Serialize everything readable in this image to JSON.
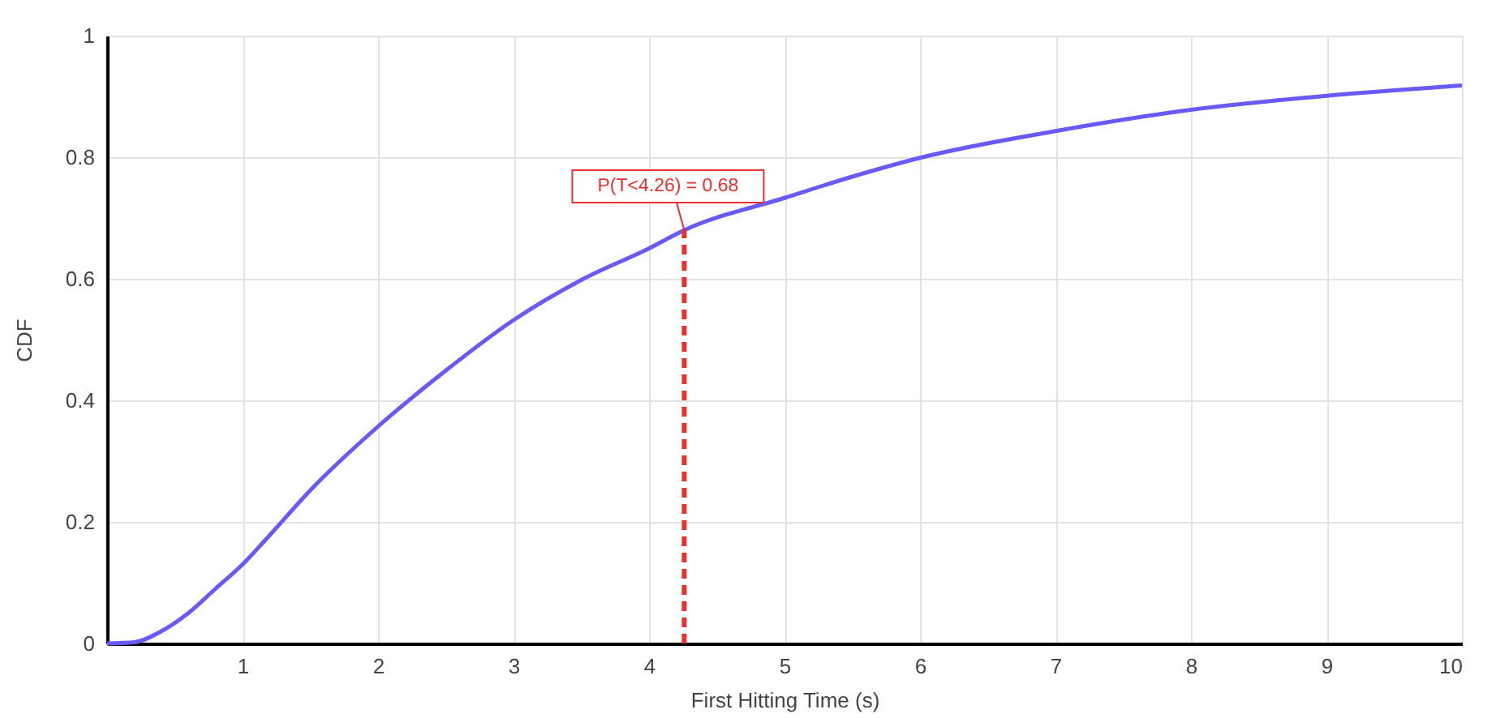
{
  "chart_data": {
    "type": "line",
    "xlabel": "First Hitting Time (s)",
    "ylabel": "CDF",
    "x": [
      0,
      0.2,
      0.4,
      0.6,
      0.8,
      1,
      1.2,
      1.5,
      2,
      2.5,
      3,
      3.5,
      4,
      4.26,
      5,
      5.5,
      6,
      7,
      8,
      9,
      10
    ],
    "series": [
      {
        "color": "#6a5af5",
        "values": [
          0,
          0.002,
          0.02,
          0.05,
          0.09,
          0.13,
          0.178,
          0.252,
          0.357,
          0.449,
          0.532,
          0.598,
          0.65,
          0.68,
          0.733,
          0.768,
          0.799,
          0.843,
          0.878,
          0.901,
          0.918
        ]
      }
    ],
    "xlim": [
      0,
      10
    ],
    "xticks": [
      1,
      2,
      3,
      4,
      5,
      6,
      7,
      8,
      9,
      10
    ],
    "ylim": [
      0,
      1
    ],
    "yticks": [
      0,
      0.2,
      0.4,
      0.6,
      0.8,
      1
    ],
    "grid": true,
    "marker": "none",
    "line_style": "solid",
    "ref_lines": [
      {
        "axis": "x",
        "value": 4.26,
        "color": "#e8312f",
        "line_style": "dashed"
      }
    ],
    "annotations": [
      {
        "text": "P(T<4.26) = 0.68",
        "x": 4.26,
        "y": 0.68
      }
    ]
  }
}
